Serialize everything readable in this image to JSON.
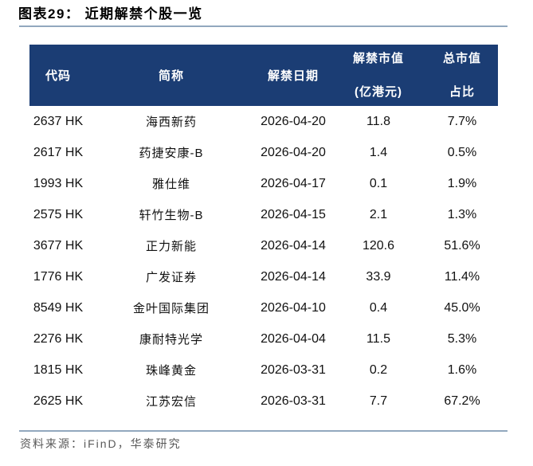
{
  "page": {
    "title": "图表29： 近期解禁个股一览",
    "source": "资料来源：iFinD，华泰研究"
  },
  "table": {
    "header": {
      "code": "代码",
      "name": "简称",
      "unlock_date": "解禁日期",
      "unlock_value_line1": "解禁市值",
      "unlock_value_line2": "(亿港元)",
      "total_share_line1": "总市值",
      "total_share_line2": "占比"
    },
    "rows": [
      {
        "code": "2637 HK",
        "name": "海西新药",
        "unlock_date": "2026-04-20",
        "unlock_value": "11.8",
        "total_share": "7.7%"
      },
      {
        "code": "2617 HK",
        "name": "药捷安康-B",
        "unlock_date": "2026-04-20",
        "unlock_value": "1.4",
        "total_share": "0.5%"
      },
      {
        "code": "1993 HK",
        "name": "雅仕维",
        "unlock_date": "2026-04-17",
        "unlock_value": "0.1",
        "total_share": "1.9%"
      },
      {
        "code": "2575 HK",
        "name": "轩竹生物-B",
        "unlock_date": "2026-04-15",
        "unlock_value": "2.1",
        "total_share": "1.3%"
      },
      {
        "code": "3677 HK",
        "name": "正力新能",
        "unlock_date": "2026-04-14",
        "unlock_value": "120.6",
        "total_share": "51.6%"
      },
      {
        "code": "1776 HK",
        "name": "广发证券",
        "unlock_date": "2026-04-14",
        "unlock_value": "33.9",
        "total_share": "11.4%"
      },
      {
        "code": "8549 HK",
        "name": "金叶国际集团",
        "unlock_date": "2026-04-10",
        "unlock_value": "0.4",
        "total_share": "45.0%"
      },
      {
        "code": "2276 HK",
        "name": "康耐特光学",
        "unlock_date": "2026-04-04",
        "unlock_value": "11.5",
        "total_share": "5.3%"
      },
      {
        "code": "1815 HK",
        "name": "珠峰黄金",
        "unlock_date": "2026-03-31",
        "unlock_value": "0.2",
        "total_share": "1.6%"
      },
      {
        "code": "2625 HK",
        "name": "江苏宏信",
        "unlock_date": "2026-03-31",
        "unlock_value": "7.7",
        "total_share": "67.2%"
      }
    ]
  },
  "colors": {
    "header_bg": "#1b3d74",
    "rule_line": "#92a8be",
    "source_text": "#595959",
    "body_text": "#111111"
  }
}
